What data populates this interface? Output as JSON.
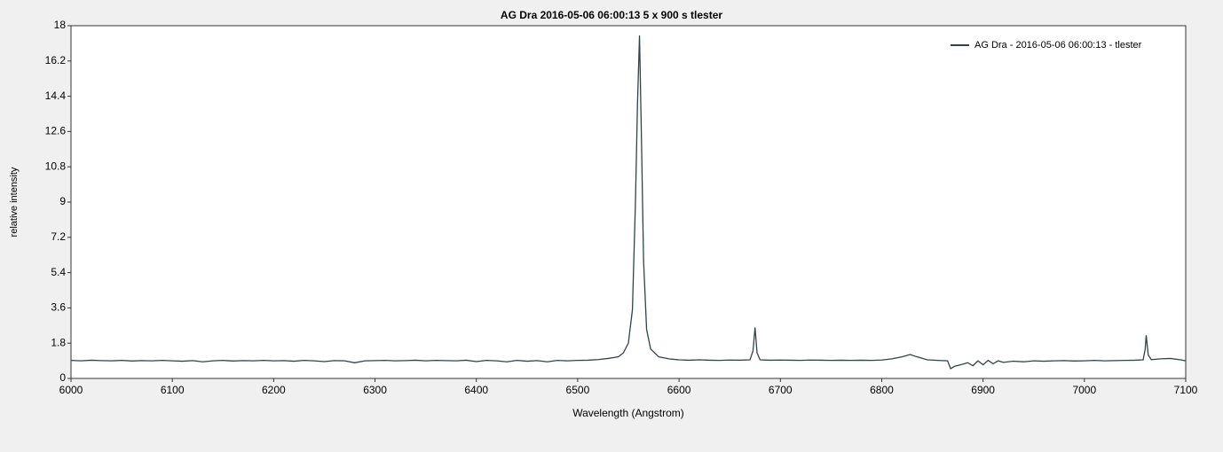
{
  "chart_data": {
    "type": "line",
    "title": "AG Dra  2016-05-06 06:00:13  5 x 900 s  tlester",
    "x_label": "Wavelength (Angstrom)",
    "y_label": "relative intensity",
    "legend": "upper right",
    "x": [
      6000,
      6010,
      6020,
      6030,
      6040,
      6050,
      6060,
      6070,
      6080,
      6090,
      6100,
      6110,
      6120,
      6130,
      6140,
      6150,
      6160,
      6170,
      6180,
      6190,
      6200,
      6210,
      6220,
      6230,
      6240,
      6250,
      6260,
      6270,
      6280,
      6290,
      6300,
      6310,
      6320,
      6330,
      6340,
      6350,
      6360,
      6370,
      6380,
      6390,
      6400,
      6410,
      6420,
      6430,
      6440,
      6450,
      6460,
      6470,
      6480,
      6490,
      6500,
      6510,
      6520,
      6530,
      6540,
      6545,
      6550,
      6554,
      6557,
      6559,
      6561,
      6563,
      6565,
      6568,
      6572,
      6580,
      6590,
      6600,
      6610,
      6620,
      6630,
      6640,
      6650,
      6660,
      6670,
      6673,
      6675,
      6677,
      6680,
      6690,
      6700,
      6710,
      6720,
      6730,
      6740,
      6750,
      6760,
      6770,
      6780,
      6790,
      6800,
      6810,
      6820,
      6828,
      6835,
      6845,
      6855,
      6865,
      6868,
      6872,
      6878,
      6885,
      6890,
      6895,
      6900,
      6905,
      6910,
      6915,
      6920,
      6930,
      6940,
      6950,
      6960,
      6970,
      6980,
      6990,
      7000,
      7010,
      7020,
      7030,
      7040,
      7050,
      7058,
      7060,
      7061,
      7063,
      7066,
      7075,
      7085,
      7095,
      7100
    ],
    "series": [
      {
        "name": "AG Dra - 2016-05-06  06:00:13 - tlester",
        "color": "#2f4446",
        "values": [
          0.92,
          0.9,
          0.93,
          0.91,
          0.9,
          0.92,
          0.89,
          0.91,
          0.9,
          0.92,
          0.9,
          0.88,
          0.91,
          0.85,
          0.9,
          0.92,
          0.89,
          0.91,
          0.9,
          0.92,
          0.9,
          0.91,
          0.88,
          0.92,
          0.9,
          0.86,
          0.91,
          0.9,
          0.8,
          0.9,
          0.91,
          0.92,
          0.9,
          0.91,
          0.93,
          0.9,
          0.92,
          0.91,
          0.9,
          0.93,
          0.86,
          0.92,
          0.9,
          0.85,
          0.92,
          0.88,
          0.91,
          0.85,
          0.92,
          0.9,
          0.92,
          0.93,
          0.96,
          1.02,
          1.1,
          1.3,
          1.8,
          3.5,
          9,
          14,
          17.5,
          12,
          6,
          2.5,
          1.5,
          1.1,
          1.0,
          0.95,
          0.93,
          0.95,
          0.93,
          0.92,
          0.94,
          0.93,
          0.95,
          1.4,
          2.6,
          1.3,
          0.95,
          0.93,
          0.94,
          0.93,
          0.92,
          0.94,
          0.93,
          0.92,
          0.93,
          0.92,
          0.93,
          0.92,
          0.94,
          1.0,
          1.1,
          1.22,
          1.1,
          0.95,
          0.92,
          0.9,
          0.5,
          0.62,
          0.7,
          0.8,
          0.65,
          0.9,
          0.7,
          0.92,
          0.75,
          0.9,
          0.82,
          0.88,
          0.85,
          0.9,
          0.88,
          0.9,
          0.91,
          0.89,
          0.9,
          0.92,
          0.9,
          0.91,
          0.92,
          0.93,
          0.95,
          1.5,
          2.2,
          1.2,
          0.96,
          1.0,
          1.02,
          0.95,
          0.9
        ]
      }
    ],
    "xlim": [
      6000,
      7100
    ],
    "xticks": [
      6000,
      6100,
      6200,
      6300,
      6400,
      6500,
      6600,
      6700,
      6800,
      6900,
      7000,
      7100
    ],
    "ylim": [
      0,
      18
    ],
    "yticks": [
      0,
      1.8,
      3.6,
      5.4,
      7.2,
      9,
      10.8,
      12.6,
      14.4,
      16.2,
      18
    ],
    "grid": false
  }
}
